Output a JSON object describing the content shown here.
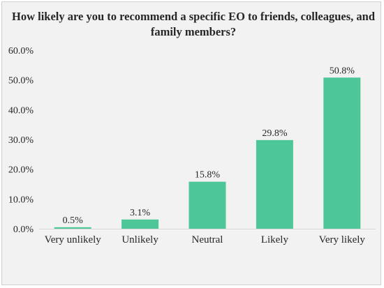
{
  "chart_data": {
    "type": "bar",
    "title": "How likely are you to recommend a specific EO to friends, colleagues, and family members?",
    "xlabel": "",
    "ylabel": "",
    "categories": [
      "Very unlikely",
      "Unlikely",
      "Neutral",
      "Likely",
      "Very likely"
    ],
    "values": [
      0.5,
      3.1,
      15.8,
      29.8,
      50.8
    ],
    "data_labels": [
      "0.5%",
      "3.1%",
      "15.8%",
      "29.8%",
      "50.8%"
    ],
    "yticks": [
      0,
      10,
      20,
      30,
      40,
      50,
      60
    ],
    "ytick_labels": [
      "0.0%",
      "10.0%",
      "20.0%",
      "30.0%",
      "40.0%",
      "50.0%",
      "60.0%"
    ],
    "ylim": [
      0,
      60
    ],
    "grid": false,
    "legend": "none",
    "colors": {
      "bar": "#4dc797",
      "background": "#f2f2f2",
      "text": "#262626"
    }
  }
}
